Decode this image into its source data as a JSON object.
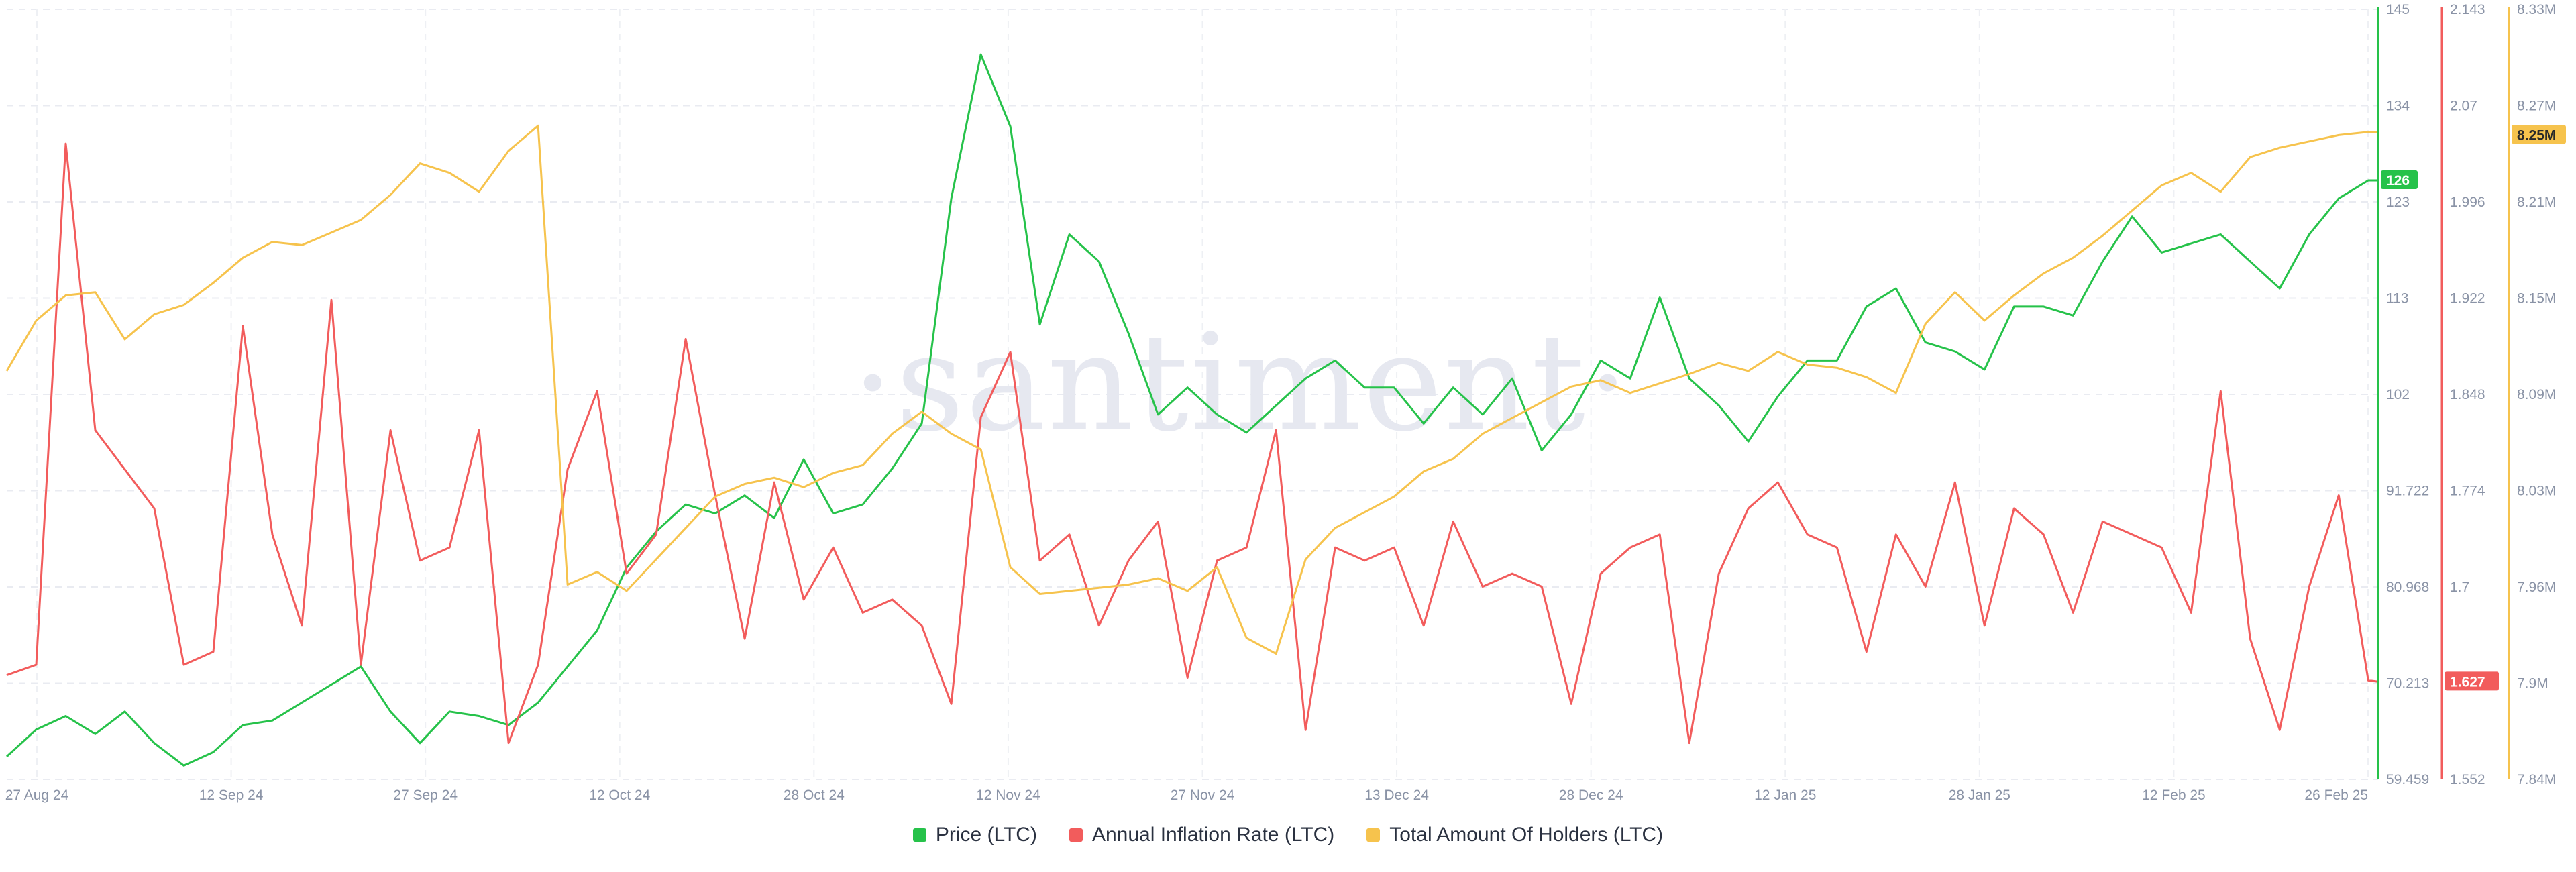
{
  "watermark": "·santiment·",
  "legend": [
    {
      "label": "Price (LTC)",
      "color": "#26c24a"
    },
    {
      "label": "Annual Inflation Rate (LTC)",
      "color": "#f25c5c"
    },
    {
      "label": "Total Amount Of Holders (LTC)",
      "color": "#f6c34d"
    }
  ],
  "chart_data": {
    "type": "line",
    "x_ticks": [
      "27 Aug 24",
      "12 Sep 24",
      "27 Sep 24",
      "12 Oct 24",
      "28 Oct 24",
      "12 Nov 24",
      "27 Nov 24",
      "13 Dec 24",
      "28 Dec 24",
      "12 Jan 25",
      "28 Jan 25",
      "12 Feb 25",
      "26 Feb 25"
    ],
    "axes": [
      {
        "name": "Price (LTC)",
        "color": "#26c24a",
        "ylim": [
          59.459,
          145
        ],
        "ticks": [
          "145",
          "134",
          "123",
          "113",
          "102",
          "91.722",
          "80.968",
          "70.213",
          "59.459"
        ],
        "current": "126"
      },
      {
        "name": "Annual Inflation Rate (LTC)",
        "color": "#f25c5c",
        "ylim": [
          1.552,
          2.143
        ],
        "ticks": [
          "2.143",
          "2.07",
          "1.996",
          "1.922",
          "1.848",
          "1.774",
          "1.7",
          "1.627",
          "1.552"
        ],
        "current": "1.627"
      },
      {
        "name": "Total Amount Of Holders (LTC)",
        "color": "#f6c34d",
        "ylim": [
          7.84,
          8.33
        ],
        "ticks": [
          "8.33M",
          "8.27M",
          "8.21M",
          "8.15M",
          "8.09M",
          "8.03M",
          "7.96M",
          "7.9M",
          "7.84M"
        ],
        "current": "8.25M"
      }
    ],
    "series": [
      {
        "name": "Price (LTC)",
        "axis": 0,
        "color": "#26c24a",
        "points": [
          [
            0,
            62.0
          ],
          [
            3,
            65.0
          ],
          [
            6,
            66.5
          ],
          [
            9,
            64.5
          ],
          [
            12,
            67.0
          ],
          [
            15,
            63.5
          ],
          [
            18,
            61.0
          ],
          [
            21,
            62.5
          ],
          [
            24,
            65.5
          ],
          [
            27,
            66.0
          ],
          [
            30,
            68.0
          ],
          [
            33,
            70.0
          ],
          [
            36,
            72.0
          ],
          [
            39,
            67.0
          ],
          [
            42,
            63.5
          ],
          [
            45,
            67.0
          ],
          [
            48,
            66.5
          ],
          [
            51,
            65.5
          ],
          [
            54,
            68.0
          ],
          [
            57,
            72.0
          ],
          [
            60,
            76.0
          ],
          [
            63,
            83.0
          ],
          [
            66,
            87.0
          ],
          [
            69,
            90.0
          ],
          [
            72,
            89.0
          ],
          [
            75,
            91.0
          ],
          [
            78,
            88.5
          ],
          [
            81,
            95.0
          ],
          [
            84,
            89.0
          ],
          [
            87,
            90.0
          ],
          [
            90,
            94.0
          ],
          [
            93,
            99.0
          ],
          [
            96,
            124.0
          ],
          [
            99,
            140.0
          ],
          [
            102,
            132.0
          ],
          [
            105,
            110.0
          ],
          [
            108,
            120.0
          ],
          [
            111,
            117.0
          ],
          [
            114,
            109.0
          ],
          [
            117,
            100.0
          ],
          [
            120,
            103.0
          ],
          [
            123,
            100.0
          ],
          [
            126,
            98.0
          ],
          [
            129,
            101.0
          ],
          [
            132,
            104.0
          ],
          [
            135,
            106.0
          ],
          [
            138,
            103.0
          ],
          [
            141,
            103.0
          ],
          [
            144,
            99.0
          ],
          [
            147,
            103.0
          ],
          [
            150,
            100.0
          ],
          [
            153,
            104.0
          ],
          [
            156,
            96.0
          ],
          [
            159,
            100.0
          ],
          [
            162,
            106.0
          ],
          [
            165,
            104.0
          ],
          [
            168,
            113.0
          ],
          [
            171,
            104.0
          ],
          [
            174,
            101.0
          ],
          [
            177,
            97.0
          ],
          [
            180,
            102.0
          ],
          [
            183,
            106.0
          ],
          [
            186,
            106.0
          ],
          [
            189,
            112.0
          ],
          [
            192,
            114.0
          ],
          [
            195,
            108.0
          ],
          [
            198,
            107.0
          ],
          [
            201,
            105.0
          ],
          [
            204,
            112.0
          ],
          [
            207,
            112.0
          ],
          [
            210,
            111.0
          ],
          [
            213,
            117.0
          ],
          [
            216,
            122.0
          ],
          [
            219,
            118.0
          ],
          [
            222,
            119.0
          ],
          [
            225,
            120.0
          ],
          [
            228,
            117.0
          ],
          [
            231,
            114.0
          ],
          [
            234,
            120.0
          ],
          [
            237,
            124.0
          ],
          [
            240,
            126.0
          ],
          [
            241,
            126.0
          ]
        ]
      },
      {
        "name": "Annual Inflation Rate (LTC)",
        "axis": 1,
        "color": "#f25c5c",
        "points": [
          [
            0,
            1.632
          ],
          [
            3,
            1.64
          ],
          [
            6,
            2.04
          ],
          [
            9,
            1.82
          ],
          [
            12,
            1.79
          ],
          [
            15,
            1.76
          ],
          [
            18,
            1.64
          ],
          [
            21,
            1.65
          ],
          [
            24,
            1.9
          ],
          [
            27,
            1.74
          ],
          [
            30,
            1.67
          ],
          [
            33,
            1.92
          ],
          [
            36,
            1.64
          ],
          [
            39,
            1.82
          ],
          [
            42,
            1.72
          ],
          [
            45,
            1.73
          ],
          [
            48,
            1.82
          ],
          [
            51,
            1.58
          ],
          [
            54,
            1.64
          ],
          [
            57,
            1.79
          ],
          [
            60,
            1.85
          ],
          [
            63,
            1.71
          ],
          [
            66,
            1.74
          ],
          [
            69,
            1.89
          ],
          [
            72,
            1.77
          ],
          [
            75,
            1.66
          ],
          [
            78,
            1.78
          ],
          [
            81,
            1.69
          ],
          [
            84,
            1.73
          ],
          [
            87,
            1.68
          ],
          [
            90,
            1.69
          ],
          [
            93,
            1.67
          ],
          [
            96,
            1.61
          ],
          [
            99,
            1.83
          ],
          [
            102,
            1.88
          ],
          [
            105,
            1.72
          ],
          [
            108,
            1.74
          ],
          [
            111,
            1.67
          ],
          [
            114,
            1.72
          ],
          [
            117,
            1.75
          ],
          [
            120,
            1.63
          ],
          [
            123,
            1.72
          ],
          [
            126,
            1.73
          ],
          [
            129,
            1.82
          ],
          [
            132,
            1.59
          ],
          [
            135,
            1.73
          ],
          [
            138,
            1.72
          ],
          [
            141,
            1.73
          ],
          [
            144,
            1.67
          ],
          [
            147,
            1.75
          ],
          [
            150,
            1.7
          ],
          [
            153,
            1.71
          ],
          [
            156,
            1.7
          ],
          [
            159,
            1.61
          ],
          [
            162,
            1.71
          ],
          [
            165,
            1.73
          ],
          [
            168,
            1.74
          ],
          [
            171,
            1.58
          ],
          [
            174,
            1.71
          ],
          [
            177,
            1.76
          ],
          [
            180,
            1.78
          ],
          [
            183,
            1.74
          ],
          [
            186,
            1.73
          ],
          [
            189,
            1.65
          ],
          [
            192,
            1.74
          ],
          [
            195,
            1.7
          ],
          [
            198,
            1.78
          ],
          [
            201,
            1.67
          ],
          [
            204,
            1.76
          ],
          [
            207,
            1.74
          ],
          [
            210,
            1.68
          ],
          [
            213,
            1.75
          ],
          [
            216,
            1.74
          ],
          [
            219,
            1.73
          ],
          [
            222,
            1.68
          ],
          [
            225,
            1.85
          ],
          [
            228,
            1.66
          ],
          [
            231,
            1.59
          ],
          [
            234,
            1.7
          ],
          [
            237,
            1.77
          ],
          [
            240,
            1.628
          ],
          [
            241,
            1.627
          ]
        ]
      },
      {
        "name": "Total Amount Of Holders (LTC)",
        "axis": 2,
        "color": "#f6c34d",
        "points": [
          [
            0,
            8.1
          ],
          [
            3,
            8.132
          ],
          [
            6,
            8.148
          ],
          [
            9,
            8.15
          ],
          [
            12,
            8.12
          ],
          [
            15,
            8.136
          ],
          [
            18,
            8.142
          ],
          [
            21,
            8.156
          ],
          [
            24,
            8.172
          ],
          [
            27,
            8.182
          ],
          [
            30,
            8.18
          ],
          [
            33,
            8.188
          ],
          [
            36,
            8.196
          ],
          [
            39,
            8.212
          ],
          [
            42,
            8.232
          ],
          [
            45,
            8.226
          ],
          [
            48,
            8.214
          ],
          [
            51,
            8.24
          ],
          [
            54,
            8.256
          ],
          [
            57,
            7.964
          ],
          [
            60,
            7.972
          ],
          [
            63,
            7.96
          ],
          [
            66,
            7.98
          ],
          [
            69,
            8.0
          ],
          [
            72,
            8.02
          ],
          [
            75,
            8.028
          ],
          [
            78,
            8.032
          ],
          [
            81,
            8.026
          ],
          [
            84,
            8.035
          ],
          [
            87,
            8.04
          ],
          [
            90,
            8.06
          ],
          [
            93,
            8.074
          ],
          [
            96,
            8.06
          ],
          [
            99,
            8.05
          ],
          [
            102,
            7.975
          ],
          [
            105,
            7.958
          ],
          [
            108,
            7.96
          ],
          [
            111,
            7.962
          ],
          [
            114,
            7.964
          ],
          [
            117,
            7.968
          ],
          [
            120,
            7.96
          ],
          [
            123,
            7.975
          ],
          [
            126,
            7.93
          ],
          [
            129,
            7.92
          ],
          [
            132,
            7.98
          ],
          [
            135,
            8.0
          ],
          [
            138,
            8.01
          ],
          [
            141,
            8.02
          ],
          [
            144,
            8.036
          ],
          [
            147,
            8.044
          ],
          [
            150,
            8.06
          ],
          [
            153,
            8.07
          ],
          [
            156,
            8.08
          ],
          [
            159,
            8.09
          ],
          [
            162,
            8.094
          ],
          [
            165,
            8.086
          ],
          [
            168,
            8.092
          ],
          [
            171,
            8.098
          ],
          [
            174,
            8.105
          ],
          [
            177,
            8.1
          ],
          [
            180,
            8.112
          ],
          [
            183,
            8.104
          ],
          [
            186,
            8.102
          ],
          [
            189,
            8.096
          ],
          [
            192,
            8.086
          ],
          [
            195,
            8.13
          ],
          [
            198,
            8.15
          ],
          [
            201,
            8.132
          ],
          [
            204,
            8.148
          ],
          [
            207,
            8.162
          ],
          [
            210,
            8.172
          ],
          [
            213,
            8.186
          ],
          [
            216,
            8.202
          ],
          [
            219,
            8.218
          ],
          [
            222,
            8.226
          ],
          [
            225,
            8.214
          ],
          [
            228,
            8.236
          ],
          [
            231,
            8.242
          ],
          [
            234,
            8.246
          ],
          [
            237,
            8.25
          ],
          [
            240,
            8.252
          ],
          [
            241,
            8.252
          ]
        ]
      }
    ]
  }
}
